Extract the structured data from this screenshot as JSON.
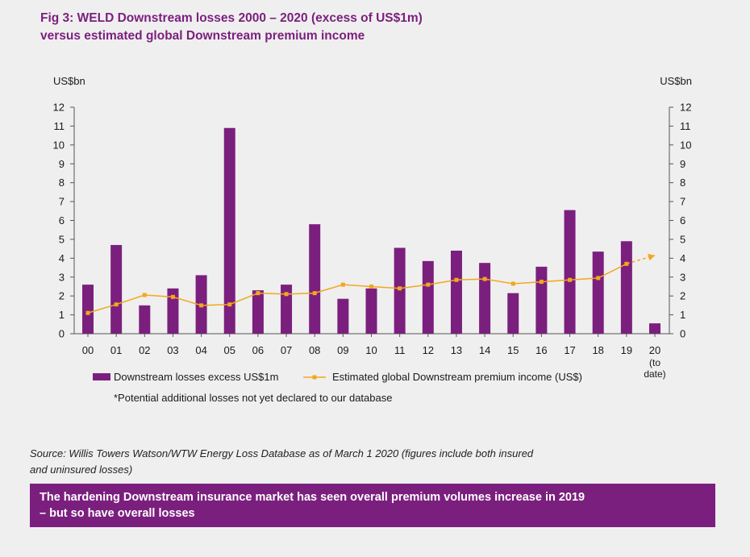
{
  "header": {
    "title_line1": "Fig 3: WELD Downstream losses 2000 – 2020 (excess of US$1m)",
    "title_line2": "versus estimated global Downstream premium income"
  },
  "chart_data": {
    "type": "bar",
    "left_axis_label": "US$bn",
    "right_axis_label": "US$bn",
    "ylim": [
      0,
      12
    ],
    "yticks": [
      0,
      1,
      2,
      3,
      4,
      5,
      6,
      7,
      8,
      9,
      10,
      11,
      12
    ],
    "categories": [
      "00",
      "01",
      "02",
      "03",
      "04",
      "05",
      "06",
      "07",
      "08",
      "09",
      "10",
      "11",
      "12",
      "13",
      "14",
      "15",
      "16",
      "17",
      "18",
      "19",
      "20"
    ],
    "last_category_note": [
      "(to",
      "date)"
    ],
    "series": [
      {
        "name": "Downstream losses excess US$1m",
        "type": "bar",
        "color": "#7b1f7e",
        "values": [
          2.6,
          4.7,
          1.5,
          2.4,
          3.1,
          10.9,
          2.3,
          2.6,
          5.8,
          1.85,
          2.4,
          4.55,
          3.85,
          4.4,
          3.75,
          2.15,
          3.55,
          6.55,
          4.35,
          4.9,
          0.55
        ]
      },
      {
        "name": "Estimated global Downstream premium income (US$)",
        "type": "line",
        "color": "#f2a81d",
        "values": [
          1.1,
          1.55,
          2.05,
          1.95,
          1.5,
          1.55,
          2.15,
          2.1,
          2.15,
          2.6,
          2.5,
          2.4,
          2.6,
          2.85,
          2.9,
          2.65,
          2.75,
          2.85,
          2.95,
          3.7,
          4.15
        ],
        "last_segment_style": "dashed-arrow"
      }
    ],
    "footnote": "*Potential additional losses not yet declared to our database",
    "grid": false,
    "legend_position": "bottom"
  },
  "footer": {
    "source_line1": "Source:  Willis Towers Watson/WTW Energy Loss Database as of March 1 2020 (figures include both insured",
    "source_line2": "and uninsured losses)",
    "callout_line1": "The hardening Downstream insurance market has seen overall premium volumes increase in 2019",
    "callout_line2": " – but so have overall losses"
  }
}
